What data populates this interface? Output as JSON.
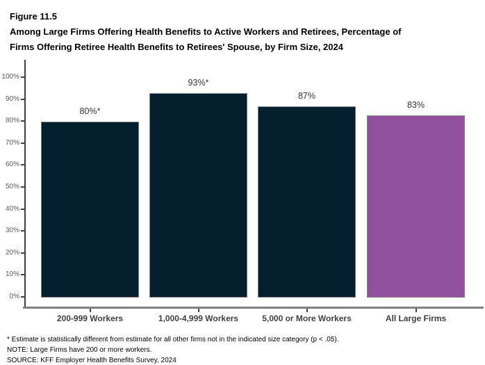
{
  "figure": {
    "label": "Figure 11.5",
    "title_line1": "Among Large Firms Offering Health Benefits to Active Workers and Retirees, Percentage of",
    "title_line2": "Firms Offering Retiree Health Benefits to Retirees' Spouse, by Firm Size, 2024"
  },
  "chart_data": {
    "type": "bar",
    "title": "Among Large Firms Offering Health Benefits to Active Workers and Retirees, Percentage of Firms Offering Retiree Health Benefits to Retirees' Spouse, by Firm Size, 2024",
    "categories": [
      "200-999 Workers",
      "1,000-4,999 Workers",
      "5,000 or More Workers",
      "All Large Firms"
    ],
    "values": [
      80,
      93,
      87,
      83
    ],
    "value_labels": [
      "80%*",
      "93%*",
      "87%",
      "83%"
    ],
    "bar_colors": [
      "#04202f",
      "#04202f",
      "#04202f",
      "#92519e"
    ],
    "bar_border_color": "#7f7f7f",
    "xlabel": "",
    "ylabel": "",
    "ylim": [
      0,
      100
    ],
    "y_tick_values": [
      0,
      10,
      20,
      30,
      40,
      50,
      60,
      70,
      80,
      90,
      100
    ],
    "y_tick_labels": [
      "0%",
      "10%",
      "20%",
      "30%",
      "40%",
      "50%",
      "60%",
      "70%",
      "80%",
      "90%",
      "100%"
    ],
    "grid": false,
    "legend_position": "none",
    "accent_navy": "#04202f",
    "accent_purple": "#92519e"
  },
  "footnotes": [
    "* Estimate is statistically different from estimate for all other firms not in the indicated size category (p < .05).",
    "NOTE: Large Firms have 200 or more workers.",
    "SOURCE: KFF Employer Health Benefits Survey, 2024"
  ]
}
